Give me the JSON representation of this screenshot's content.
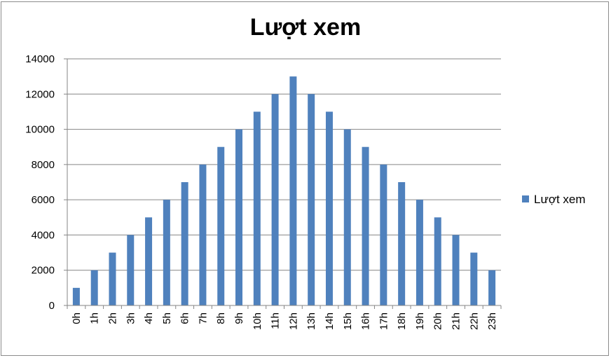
{
  "chart_data": {
    "type": "bar",
    "title": "Lượt xem",
    "categories": [
      "0h",
      "1h",
      "2h",
      "3h",
      "4h",
      "5h",
      "6h",
      "7h",
      "8h",
      "9h",
      "10h",
      "11h",
      "12h",
      "13h",
      "14h",
      "15h",
      "16h",
      "17h",
      "18h",
      "19h",
      "20h",
      "21h",
      "22h",
      "23h"
    ],
    "series": [
      {
        "name": "Lượt xem",
        "color": "#4f81bd",
        "values": [
          1000,
          2000,
          3000,
          4000,
          5000,
          6000,
          7000,
          8000,
          9000,
          10000,
          11000,
          12000,
          13000,
          12000,
          11000,
          10000,
          9000,
          8000,
          7000,
          6000,
          5000,
          4000,
          3000,
          2000
        ]
      }
    ],
    "yticks": [
      "0",
      "2000",
      "4000",
      "6000",
      "8000",
      "10000",
      "12000",
      "14000"
    ],
    "ylim": [
      0,
      14000
    ],
    "grid": true,
    "legend_position": "right",
    "xlabel": "",
    "ylabel": ""
  }
}
